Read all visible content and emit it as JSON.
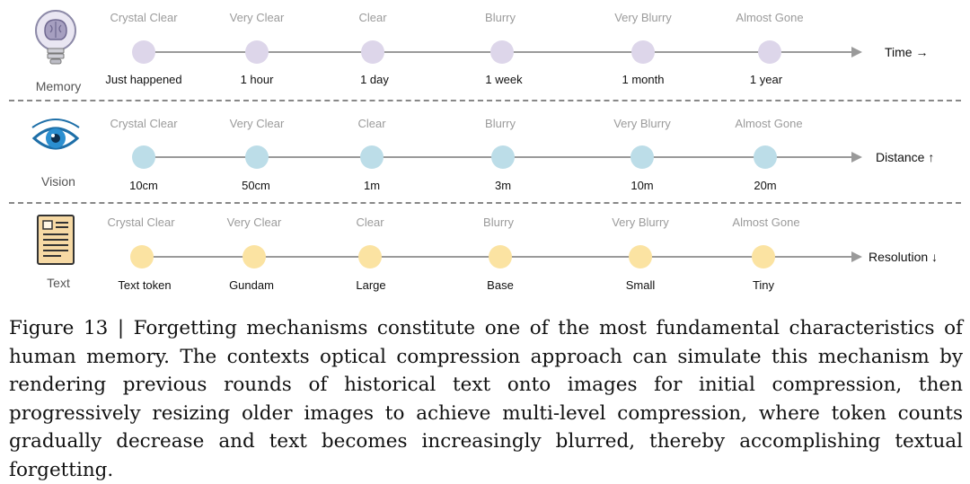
{
  "figure": {
    "rows": [
      {
        "id": "memory",
        "label": "Memory",
        "icon": "brain-lightbulb-icon",
        "axis_label": "Time →",
        "dot_color": "#ddd6ea",
        "stages": [
          "Crystal Clear",
          "Very Clear",
          "Clear",
          "Blurry",
          "Very Blurry",
          "Almost Gone"
        ],
        "ticks": [
          "Just happened",
          "1 hour",
          "1 day",
          "1 week",
          "1 month",
          "1 year"
        ]
      },
      {
        "id": "vision",
        "label": "Vision",
        "icon": "eye-icon",
        "axis_label": "Distance ↑",
        "dot_color": "#bcdde8",
        "stages": [
          "Crystal Clear",
          "Very Clear",
          "Clear",
          "Blurry",
          "Very Blurry",
          "Almost Gone"
        ],
        "ticks": [
          "10cm",
          "50cm",
          "1m",
          "3m",
          "10m",
          "20m"
        ]
      },
      {
        "id": "text",
        "label": "Text",
        "icon": "document-icon",
        "axis_label": "Resolution ↓",
        "dot_color": "#fbe3a2",
        "stages": [
          "Crystal Clear",
          "Very Clear",
          "Clear",
          "Blurry",
          "Very Blurry",
          "Almost Gone"
        ],
        "ticks": [
          "Text token",
          "Gundam",
          "Large",
          "Base",
          "Small",
          "Tiny"
        ]
      }
    ]
  },
  "caption": "Figure 13 | Forgetting mechanisms constitute one of the most fundamental characteristics of human memory. The contexts optical compression approach can simulate this mechanism by rendering previous rounds of historical text onto images for initial compression, then progressively resizing older images to achieve multi-level compression, where token counts gradually decrease and text becomes increasingly blurred, thereby accomplishing textual forgetting."
}
